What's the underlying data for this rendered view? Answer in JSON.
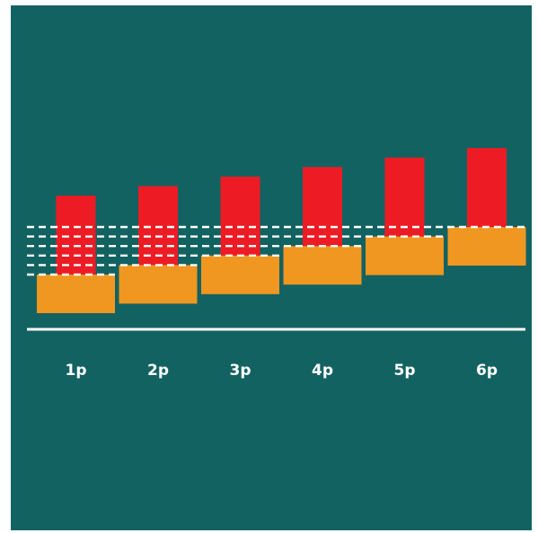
{
  "colors": {
    "background": "#136262",
    "upper_bar": "#ed1c24",
    "lower_block": "#ef9720",
    "baseline": "#ffffff",
    "dashed_lines": "#ffffff",
    "label_text": "#ffffff"
  },
  "columns": [
    {
      "label": "1p",
      "step": 1
    },
    {
      "label": "2p",
      "step": 2
    },
    {
      "label": "3p",
      "step": 3
    },
    {
      "label": "4p",
      "step": 4
    },
    {
      "label": "5p",
      "step": 5
    },
    {
      "label": "6p",
      "step": 6
    }
  ]
}
